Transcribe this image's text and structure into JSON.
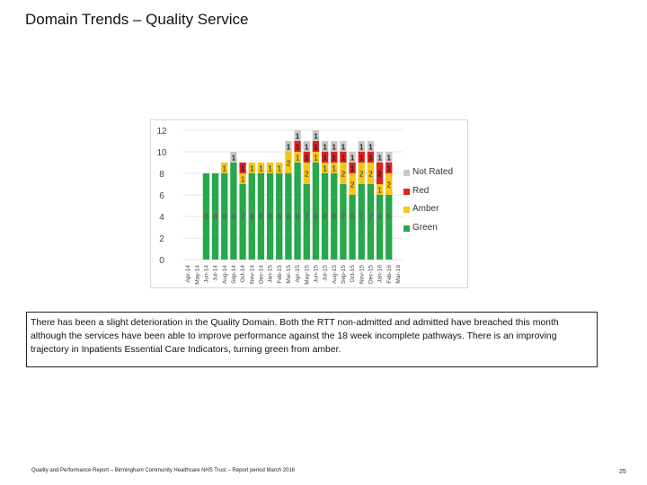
{
  "page": {
    "title": "Domain Trends – Quality Service",
    "commentary": "There has been a slight deterioration in the Quality Domain. Both the RTT non-admitted and admitted have breached this month although the services have been able to improve performance against the 18 week incomplete pathways. There is an improving trajectory in Inpatients Essential Care Indicators, turning green from amber.",
    "footer": "Quality and Performance Report – Birmingham Community Healthcare NHS Trust – Report period March 2016",
    "page_number": "25"
  },
  "colors": {
    "green": "#27a84a",
    "amber": "#f5c518",
    "red": "#e02020",
    "not_rated": "#c8c8c8",
    "axis_text": "#444444",
    "gridline": "#e6e6e6"
  },
  "chart_data": {
    "type": "bar",
    "stacked": true,
    "title": "",
    "xlabel": "",
    "ylabel": "",
    "ylim": [
      0,
      12
    ],
    "yticks": [
      0,
      2,
      4,
      6,
      8,
      10,
      12
    ],
    "legend_position": "right",
    "categories": [
      "Apr-14",
      "May-14",
      "Jun-14",
      "Jul-14",
      "Aug-14",
      "Sep-14",
      "Oct-14",
      "Nov-14",
      "Dec-14",
      "Jan-15",
      "Feb-15",
      "Mar-15",
      "Apr-15",
      "May-15",
      "Jun-15",
      "Jul-15",
      "Aug-15",
      "Sep-15",
      "Oct-15",
      "Nov-15",
      "Dec-15",
      "Jan-16",
      "Feb-16",
      "Mar-16"
    ],
    "series": [
      {
        "name": "Green",
        "key": "green",
        "values": [
          0,
          0,
          8,
          8,
          8,
          9,
          7,
          8,
          8,
          8,
          8,
          8,
          9,
          7,
          9,
          8,
          8,
          7,
          6,
          7,
          7,
          6,
          6,
          0
        ]
      },
      {
        "name": "Amber",
        "key": "amber",
        "values": [
          0,
          0,
          0,
          0,
          1,
          0,
          1,
          1,
          1,
          1,
          1,
          2,
          1,
          2,
          1,
          1,
          1,
          2,
          2,
          2,
          2,
          1,
          2,
          0
        ]
      },
      {
        "name": "Red",
        "key": "red",
        "values": [
          0,
          0,
          0,
          0,
          0,
          0,
          1,
          0,
          0,
          0,
          0,
          0,
          1,
          1,
          1,
          1,
          1,
          1,
          1,
          1,
          1,
          2,
          1,
          0
        ]
      },
      {
        "name": "Not Rated",
        "key": "not_rated",
        "values": [
          0,
          0,
          0,
          0,
          0,
          1,
          0,
          0,
          0,
          0,
          0,
          1,
          1,
          1,
          1,
          1,
          1,
          1,
          1,
          1,
          1,
          1,
          1,
          0
        ]
      }
    ],
    "legend_order": [
      "Not Rated",
      "Red",
      "Amber",
      "Green"
    ]
  }
}
